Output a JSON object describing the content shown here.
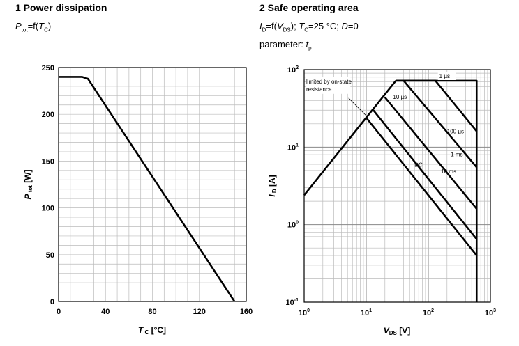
{
  "charts": [
    {
      "heading": "1 Power dissipation",
      "subtitle": "P_tot=f(T_C)"
    },
    {
      "heading": "2 Safe operating area",
      "subtitle": "I_D=f(V_DS); T_C=25 °C; D=0",
      "subtitle2": "parameter: t_p"
    }
  ],
  "chart_data": [
    {
      "type": "line",
      "title": "1 Power dissipation",
      "xlabel": "T_C [°C]",
      "ylabel": "P_tot [W]",
      "xlim": [
        0,
        160
      ],
      "ylim": [
        0,
        250
      ],
      "x_ticks": [
        "0",
        "40",
        "80",
        "120",
        "160"
      ],
      "y_ticks": [
        "0",
        "50",
        "100",
        "150",
        "200",
        "250"
      ],
      "grid": true,
      "series": [
        {
          "x": [
            0,
            20,
            25,
            150
          ],
          "y": [
            240,
            240,
            238,
            0
          ]
        }
      ]
    },
    {
      "type": "line",
      "title": "2 Safe operating area",
      "xlabel": "V_DS [V]",
      "ylabel": "I_D [A]",
      "x_scale": "log",
      "y_scale": "log",
      "xlim": [
        1,
        1000
      ],
      "ylim": [
        0.1,
        100
      ],
      "x_ticks": [
        "10^0",
        "10^1",
        "10^2",
        "10^3"
      ],
      "y_ticks": [
        "10^-1",
        "10^0",
        "10^1",
        "10^2"
      ],
      "grid": true,
      "annotations": [
        "limited by on-state resistance",
        "1 µs",
        "10 µs",
        "100 µs",
        "1 ms",
        "10 ms",
        "DC"
      ],
      "series": [
        {
          "name": "limited by on-state resistance",
          "x": [
            1,
            30
          ],
          "y": [
            2.4,
            72
          ]
        },
        {
          "name": "1 µs",
          "x": [
            30,
            60,
            600,
            600,
            600
          ],
          "y": [
            72,
            72,
            72,
            40,
            0.1
          ]
        },
        {
          "name": "10 µs",
          "x": [
            30,
            60,
            130,
            600
          ],
          "y": [
            72,
            72,
            72,
            16
          ]
        },
        {
          "name": "100 µs",
          "x": [
            40,
            600
          ],
          "y": [
            72,
            5.5
          ]
        },
        {
          "name": "1 ms",
          "x": [
            20,
            600
          ],
          "y": [
            44,
            1.6
          ]
        },
        {
          "name": "10 ms",
          "x": [
            13,
            600
          ],
          "y": [
            30,
            0.65
          ]
        },
        {
          "name": "DC",
          "x": [
            10,
            600
          ],
          "y": [
            24,
            0.4
          ]
        }
      ]
    }
  ]
}
